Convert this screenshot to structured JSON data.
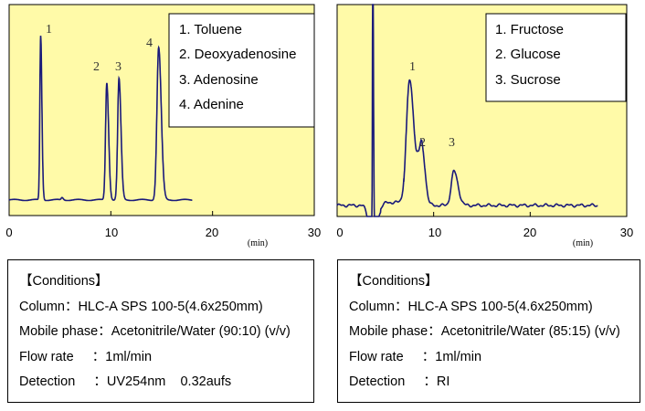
{
  "chart_data": [
    {
      "type": "line",
      "xlabel": "(min)",
      "x_ticks": [
        "0",
        "10",
        "20",
        "30"
      ],
      "xlim": [
        0,
        30
      ],
      "ylim": [
        -8,
        100
      ],
      "grid": false,
      "legend_placement": "top-right",
      "trace_end": 18,
      "line_color": "#1a1a7a",
      "background": "#fffaa8",
      "peaks": [
        {
          "label": "1",
          "rt": 3.1,
          "height": 84
        },
        {
          "label": "2",
          "rt": 9.6,
          "height": 60
        },
        {
          "label": "3",
          "rt": 10.8,
          "height": 62
        },
        {
          "label": "4",
          "rt": 14.7,
          "height": 78
        }
      ],
      "legend": [
        "1. Toluene",
        "2. Deoxyadenosine",
        "3. Adenosine",
        "4. Adenine"
      ]
    },
    {
      "type": "line",
      "xlabel": "(min)",
      "x_ticks": [
        "0",
        "10",
        "20",
        "30"
      ],
      "xlim": [
        0,
        30
      ],
      "ylim": [
        -5.5,
        100
      ],
      "grid": false,
      "legend_placement": "top-right",
      "trace_end": 27,
      "line_color": "#1a1a7a",
      "background": "#fffaa8",
      "solvent_peak_rt": 3.7,
      "peaks": [
        {
          "label": "1",
          "rt": 7.5,
          "height": 62
        },
        {
          "label": "2",
          "rt": 8.8,
          "height": 27
        },
        {
          "label": "3",
          "rt": 12.1,
          "height": 17
        }
      ],
      "legend": [
        "1. Fructose",
        "2. Glucose",
        "3. Sucrose"
      ]
    }
  ],
  "conditions": [
    {
      "title": "【Conditions】",
      "column": "Column：HLC-A SPS 100-5(4.6x250mm)",
      "mobile_phase": "Mobile phase：Acetonitrile/Water (90:10) (v/v)",
      "flow_rate": "Flow rate     ：1ml/min",
      "detection": "Detection     ：UV254nm    0.32aufs"
    },
    {
      "title": "【Conditions】",
      "column": "Column：HLC-A SPS 100-5(4.6x250mm)",
      "mobile_phase": "Mobile phase：Acetonitrile/Water (85:15) (v/v)",
      "flow_rate": "Flow rate     ：1ml/min",
      "detection": "Detection     ：RI"
    }
  ]
}
